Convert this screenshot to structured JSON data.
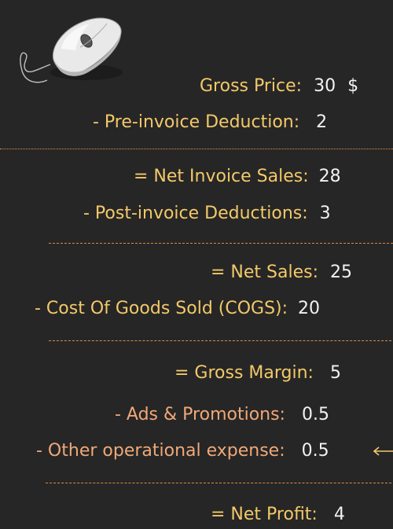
{
  "rows": {
    "gross_price": {
      "label": "Gross Price:",
      "value": "30",
      "unit": "$"
    },
    "pre_invoice": {
      "label": "- Pre-invoice Deduction:",
      "value": "2"
    },
    "net_invoice": {
      "label": "= Net Invoice Sales:",
      "value": "28"
    },
    "post_invoice": {
      "label": "- Post-invoice Deductions:",
      "value": "3"
    },
    "net_sales": {
      "label": "= Net Sales:",
      "value": "25"
    },
    "cogs": {
      "label": "- Cost Of Goods Sold (COGS):",
      "value": "20"
    },
    "gross_margin": {
      "label": "= Gross Margin:",
      "value": "5"
    },
    "ads": {
      "label": "- Ads & Promotions:",
      "value": "0.5"
    },
    "other_opex": {
      "label": "- Other operational expense:",
      "value": "0.5"
    },
    "net_profit": {
      "label": "= Net Profit:",
      "value": "4"
    }
  },
  "colors": {
    "background": "#262626",
    "label_yellow": "#f3c969",
    "label_salmon": "#f0a878",
    "value": "#f2f2f2",
    "divider": "#d98b4a"
  },
  "icons": {
    "product": "computer-mouse-icon",
    "pointer": "arrow-left-icon"
  }
}
